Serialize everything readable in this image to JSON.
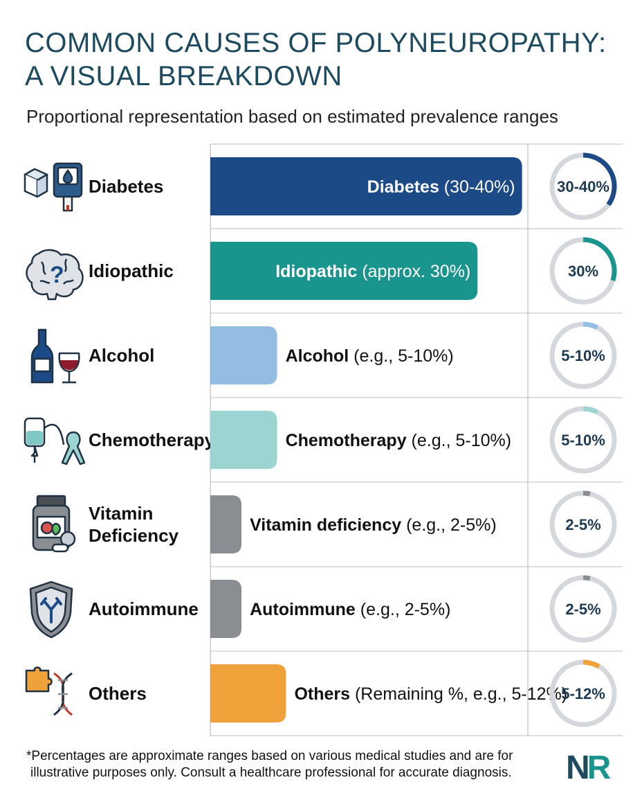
{
  "header": {
    "title_line1": "COMMON CAUSES OF POLYNEUROPATHY:",
    "title_line2": "A VISUAL BREAKDOWN",
    "subtitle": "Proportional representation based on estimated prevalence ranges"
  },
  "chart_data": {
    "type": "bar",
    "orientation": "horizontal",
    "grid": true,
    "categories": [
      "Diabetes",
      "Idiopathic",
      "Alcohol",
      "Chemotherapy",
      "Vitamin Deficiency",
      "Autoimmune",
      "Others"
    ],
    "bar_labels": [
      {
        "bold": "Diabetes",
        "rest": " (30-40%)"
      },
      {
        "bold": "Idiopathic",
        "rest": " (approx. 30%)"
      },
      {
        "bold": "Alcohol",
        "rest": " (e.g., 5-10%)"
      },
      {
        "bold": "Chemotherapy",
        "rest": " (e.g., 5-10%)"
      },
      {
        "bold": "Vitamin deficiency",
        "rest": " (e.g., 2-5%)"
      },
      {
        "bold": "Autoimmune",
        "rest": " (e.g., 2-5%)"
      },
      {
        "bold": "Others",
        "rest": " (Remaining %, e.g., 5-12%)"
      }
    ],
    "ranges": [
      [
        30,
        40
      ],
      [
        30,
        30
      ],
      [
        5,
        10
      ],
      [
        5,
        10
      ],
      [
        2,
        5
      ],
      [
        2,
        5
      ],
      [
        5,
        12
      ]
    ],
    "values": [
      35,
      30,
      7.5,
      7.5,
      3.5,
      3.5,
      8.5
    ],
    "ring_labels": [
      "30-40%",
      "30%",
      "5-10%",
      "5-10%",
      "2-5%",
      "2-5%",
      "5-12%"
    ],
    "ring_values": [
      35,
      30,
      7.5,
      7.5,
      3.5,
      3.5,
      8.5
    ],
    "colors": [
      "#1b4a86",
      "#1a958e",
      "#93bde3",
      "#9bd4d0",
      "#8a8d91",
      "#8a8d91",
      "#f0a23a"
    ],
    "icons": [
      "glucose-meter-icon",
      "brain-question-icon",
      "wine-bottle-icon",
      "iv-ribbon-icon",
      "vitamin-bottle-icon",
      "antibody-shield-icon",
      "puzzle-dna-icon"
    ]
  },
  "footnote": {
    "line1": "*Percentages are approximate ranges based on various medical studies and are for",
    "line2": "illustrative purposes only. Consult a healthcare professional for accurate diagnosis."
  },
  "logo": {
    "text": "NR",
    "colors": [
      "#1d4a5f",
      "#1a958e"
    ]
  }
}
